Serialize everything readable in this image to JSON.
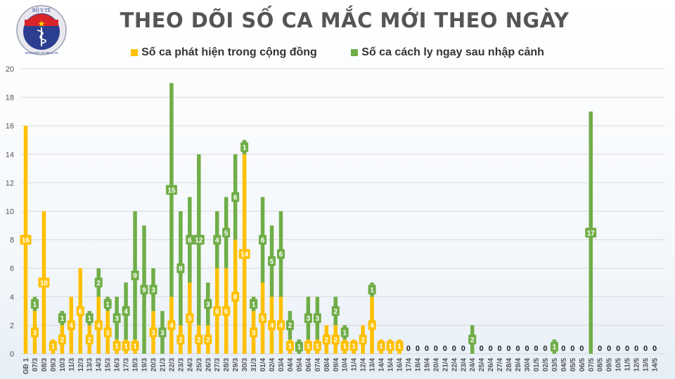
{
  "header": {
    "title": "THEO DÕI SỐ CA MẮC MỚI THEO NGÀY",
    "logo": {
      "top_text": "BỘ Y TẾ",
      "bottom_text": "MINISTRY OF HEALTH",
      "icon": "caduceus-icon"
    }
  },
  "legend": [
    {
      "label": "Số ca phát hiện trong cộng đồng",
      "color": "#FFC000"
    },
    {
      "label": "Số ca cách ly ngay sau nhập cảnh",
      "color": "#70AD47"
    }
  ],
  "chart_data": {
    "type": "bar",
    "stacked": true,
    "title": "THEO DÕI SỐ CA MẮC MỚI THEO NGÀY",
    "xlabel": "",
    "ylabel": "",
    "ylim": [
      0,
      20
    ],
    "yticks": [
      0,
      2,
      4,
      6,
      8,
      10,
      12,
      14,
      16,
      18,
      20
    ],
    "grid": true,
    "legend_position": "top",
    "categories": [
      "GĐ 1",
      "07/3",
      "08/3",
      "09/3",
      "10/3",
      "11/3",
      "12/3",
      "13/3",
      "14/3",
      "15/3",
      "16/3",
      "17/3",
      "18/3",
      "19/3",
      "20/3",
      "21/3",
      "22/3",
      "23/3",
      "24/3",
      "25/3",
      "26/3",
      "27/3",
      "28/3",
      "29/3",
      "30/3",
      "31/3",
      "01/4",
      "02/4",
      "03/4",
      "04/4",
      "05/4",
      "06/4",
      "07/4",
      "08/4",
      "09/4",
      "10/4",
      "11/4",
      "12/4",
      "13/4",
      "14/4",
      "15/4",
      "16/4",
      "17/4",
      "18/4",
      "19/4",
      "20/4",
      "21/4",
      "22/4",
      "23/4",
      "24/4",
      "25/4",
      "26/4",
      "27/4",
      "28/4",
      "29/4",
      "30/4",
      "01/5",
      "02/5",
      "03/5",
      "04/5",
      "05/5",
      "06/5",
      "07/5",
      "08/5",
      "09/5",
      "10/5",
      "11/5",
      "12/5",
      "13/5",
      "14/5"
    ],
    "series": [
      {
        "name": "Số ca phát hiện trong cộng đồng",
        "color": "#FFC000",
        "values": [
          16,
          3,
          10,
          1,
          2,
          4,
          6,
          2,
          4,
          3,
          1,
          1,
          1,
          0,
          3,
          0,
          4,
          2,
          5,
          2,
          2,
          6,
          6,
          8,
          14,
          3,
          5,
          4,
          4,
          1,
          0,
          1,
          1,
          2,
          2,
          1,
          1,
          2,
          4,
          1,
          1,
          1,
          0,
          0,
          0,
          0,
          0,
          0,
          0,
          0,
          0,
          0,
          0,
          0,
          0,
          0,
          0,
          0,
          0,
          0,
          0,
          0,
          0,
          0,
          0,
          0,
          0,
          0,
          0,
          0
        ]
      },
      {
        "name": "Số ca cách ly ngay sau nhập cảnh",
        "color": "#70AD47",
        "values": [
          0,
          1,
          0,
          0,
          1,
          0,
          0,
          1,
          2,
          1,
          3,
          4,
          9,
          9,
          3,
          3,
          15,
          8,
          6,
          12,
          3,
          4,
          5,
          6,
          1,
          1,
          6,
          5,
          6,
          2,
          1,
          3,
          3,
          0,
          2,
          1,
          0,
          0,
          1,
          0,
          0,
          0,
          0,
          0,
          0,
          0,
          0,
          0,
          0,
          2,
          0,
          0,
          0,
          0,
          0,
          0,
          0,
          0,
          1,
          0,
          0,
          0,
          17,
          0,
          0,
          0,
          0,
          0,
          0,
          0
        ]
      }
    ]
  }
}
